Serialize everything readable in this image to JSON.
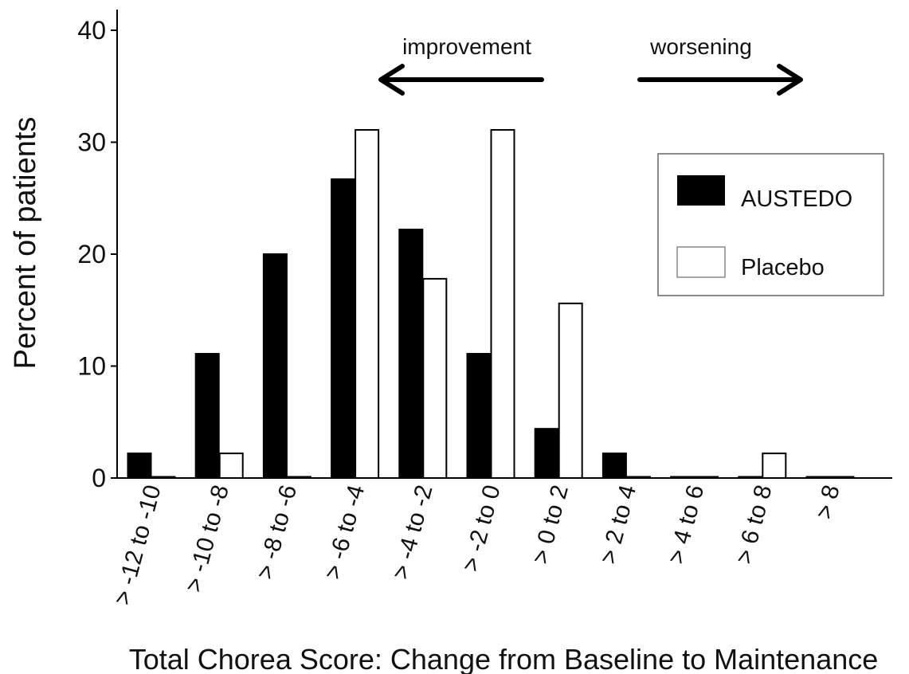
{
  "chart_data": {
    "type": "bar",
    "xlabel": "Total Chorea Score: Change from Baseline to Maintenance",
    "ylabel": "Percent of patients",
    "ylim": [
      0,
      40
    ],
    "yticks": [
      0,
      10,
      20,
      30,
      40
    ],
    "categories": [
      "> -12 to -10",
      "> -10 to -8",
      "> -8 to -6",
      "> -6 to -4",
      "> -4 to -2",
      "> -2 to 0",
      "> 0 to 2",
      "> 2 to 4",
      "> 4 to 6",
      "> 6 to 8",
      "> 8"
    ],
    "series": [
      {
        "name": "AUSTEDO",
        "fill": "#000000",
        "values": [
          2.2,
          11.1,
          20.0,
          26.7,
          22.2,
          11.1,
          4.4,
          2.2,
          0,
          0,
          0
        ]
      },
      {
        "name": "Placebo",
        "fill": "#ffffff",
        "values": [
          0,
          2.2,
          0,
          31.1,
          17.8,
          31.1,
          15.6,
          0,
          0,
          2.2,
          0
        ]
      }
    ],
    "annotations": {
      "left_arrow": "improvement",
      "right_arrow": "worsening"
    },
    "legend_position": "top-right",
    "grid": false
  }
}
